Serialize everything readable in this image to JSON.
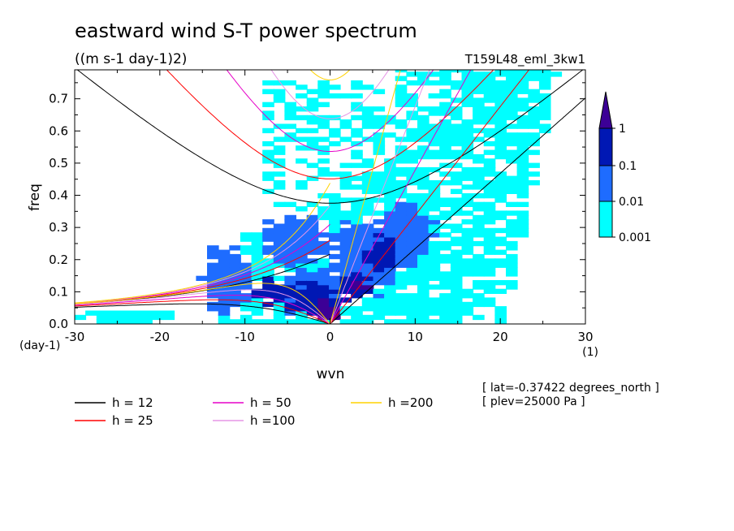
{
  "chart_data": {
    "type": "heatmap",
    "title": "eastward wind S-T power spectrum",
    "subtitle": "((m s-1 day-1)2)",
    "run_label": "T159L48_eml_3kw1",
    "xlabel": "wvn",
    "ylabel": "freq",
    "x_unit": "(1)",
    "y_unit": "(day-1)",
    "xlim": [
      -30,
      30
    ],
    "ylim": [
      0,
      0.79
    ],
    "x_ticks": [
      "-30",
      "-20",
      "-10",
      "0",
      "10",
      "20",
      "30"
    ],
    "y_ticks": [
      "0.0",
      "0.1",
      "0.2",
      "0.3",
      "0.4",
      "0.5",
      "0.6",
      "0.7"
    ],
    "colorbar": {
      "levels": [
        0.001,
        0.01,
        0.1,
        1
      ],
      "labels": [
        "0.001",
        "0.01",
        "0.1",
        "1"
      ],
      "colors": [
        "#00ffff",
        "#1e6cff",
        "#0018b4",
        "#3c0096"
      ]
    },
    "dispersion_series": [
      {
        "name": "h = 12",
        "h": 12,
        "color": "#000000"
      },
      {
        "name": "h = 25",
        "h": 25,
        "color": "#ff0000"
      },
      {
        "name": "h = 50",
        "h": 50,
        "color": "#e600c8"
      },
      {
        "name": "h =100",
        "h": 100,
        "color": "#e696e6"
      },
      {
        "name": "h =200",
        "h": 200,
        "color": "#ffd200"
      }
    ],
    "info_lines": [
      "[ lat=-0.37422 degrees_north ]",
      "[ plev=25000 Pa ]"
    ]
  }
}
